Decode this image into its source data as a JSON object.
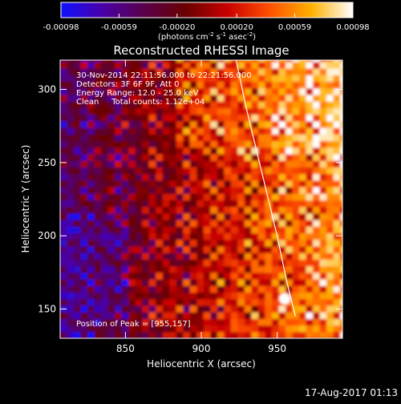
{
  "colorbar": {
    "ticks": [
      "-0.00098",
      "-0.00059",
      "-0.00020",
      "0.00020",
      "0.00059",
      "0.00098"
    ],
    "tick_values": [
      -0.00098,
      -0.00059,
      -0.0002,
      0.0002,
      0.00059,
      0.00098
    ],
    "range": [
      -0.00098,
      0.00098
    ],
    "unit_prefix": "(photons cm",
    "unit_sup1": "-2",
    "unit_mid": " s",
    "unit_sup2": "-1",
    "unit_mid2": " asec",
    "unit_sup3": "-2",
    "unit_suffix": ")",
    "colors": [
      "#1010ff",
      "#4a00a8",
      "#5a004a",
      "#6a0000",
      "#c80000",
      "#ff5000",
      "#ffb000",
      "#ffffff"
    ]
  },
  "info": {
    "time": "30-Nov-2014 22:11:56.000 to 22:21:56.000",
    "detectors": "Detectors: 3F 6F 9F, Att 0",
    "energy": "Energy Range: 12.0 - 25.0 keV",
    "method_counts": "Clean     Total counts: 1.12e+04",
    "peak": "Position of Peak = [955,157]"
  },
  "footer": {
    "date": "17-Aug-2017 01:13"
  },
  "chart_data": {
    "type": "heatmap",
    "title": "Reconstructed RHESSI Image",
    "xlabel": "Heliocentric X (arcsec)",
    "ylabel": "Heliocentric Y (arcsec)",
    "xlim": [
      807,
      993
    ],
    "ylim": [
      130,
      320
    ],
    "xticks": [
      850,
      900,
      950
    ],
    "yticks": [
      150,
      200,
      250,
      300
    ],
    "peak": [
      955,
      157
    ],
    "limb_curve": {
      "x": [
        923,
        929,
        936,
        943,
        950,
        956,
        962
      ],
      "y": [
        320,
        290,
        260,
        230,
        200,
        170,
        145
      ]
    },
    "regions": [
      {
        "name": "faint purple/blue background",
        "x": [
          807,
          880
        ],
        "y": [
          130,
          320
        ],
        "level": -0.0004
      },
      {
        "name": "bright red-orange region",
        "x": [
          900,
          993
        ],
        "y": [
          130,
          320
        ],
        "level": 0.0006
      },
      {
        "name": "upper central bright blobs",
        "x": [
          880,
          930
        ],
        "y": [
          255,
          320
        ],
        "level": 0.0007
      }
    ]
  }
}
